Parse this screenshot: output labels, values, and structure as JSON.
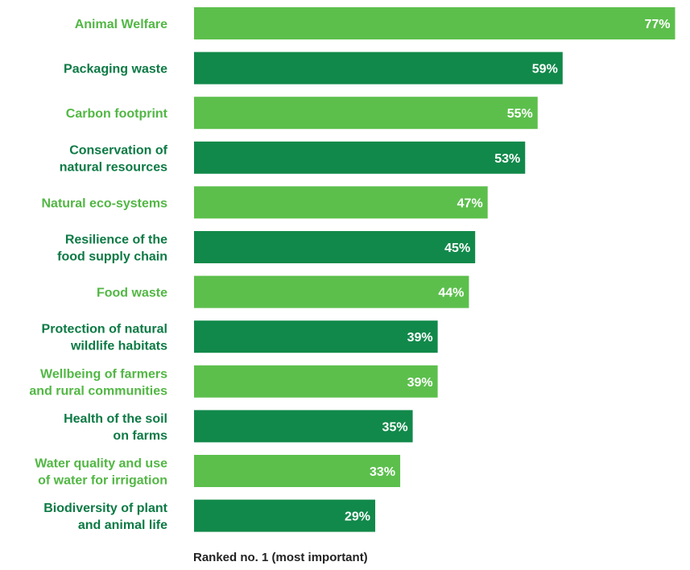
{
  "chart_data": {
    "type": "bar",
    "orientation": "horizontal",
    "xlabel": "Ranked no. 1 (most important)",
    "ylabel": "",
    "xlim": [
      0,
      79
    ],
    "value_suffix": "%",
    "grid": false,
    "categories": [
      [
        "Animal Welfare"
      ],
      [
        "Packaging waste"
      ],
      [
        "Carbon footprint"
      ],
      [
        "Conservation of",
        "natural resources"
      ],
      [
        "Natural eco-systems"
      ],
      [
        "Resilience of the",
        "food supply chain"
      ],
      [
        "Food waste"
      ],
      [
        "Protection of natural",
        "wildlife habitats"
      ],
      [
        "Wellbeing of farmers",
        "and rural communities"
      ],
      [
        "Health of the soil",
        "on farms"
      ],
      [
        "Water quality and use",
        "of water for irrigation"
      ],
      [
        "Biodiversity of plant",
        "and animal life"
      ]
    ],
    "values": [
      77,
      59,
      55,
      53,
      47,
      45,
      44,
      39,
      39,
      35,
      33,
      29
    ],
    "value_labels": [
      "77%",
      "59%",
      "55%",
      "53%",
      "47%",
      "45%",
      "44%",
      "39%",
      "39%",
      "35%",
      "33%",
      "29%"
    ],
    "colors": {
      "light": "#5cbf4c",
      "dark": "#11894a",
      "label_light": "#52b744",
      "label_dark": "#0d7a45"
    }
  }
}
